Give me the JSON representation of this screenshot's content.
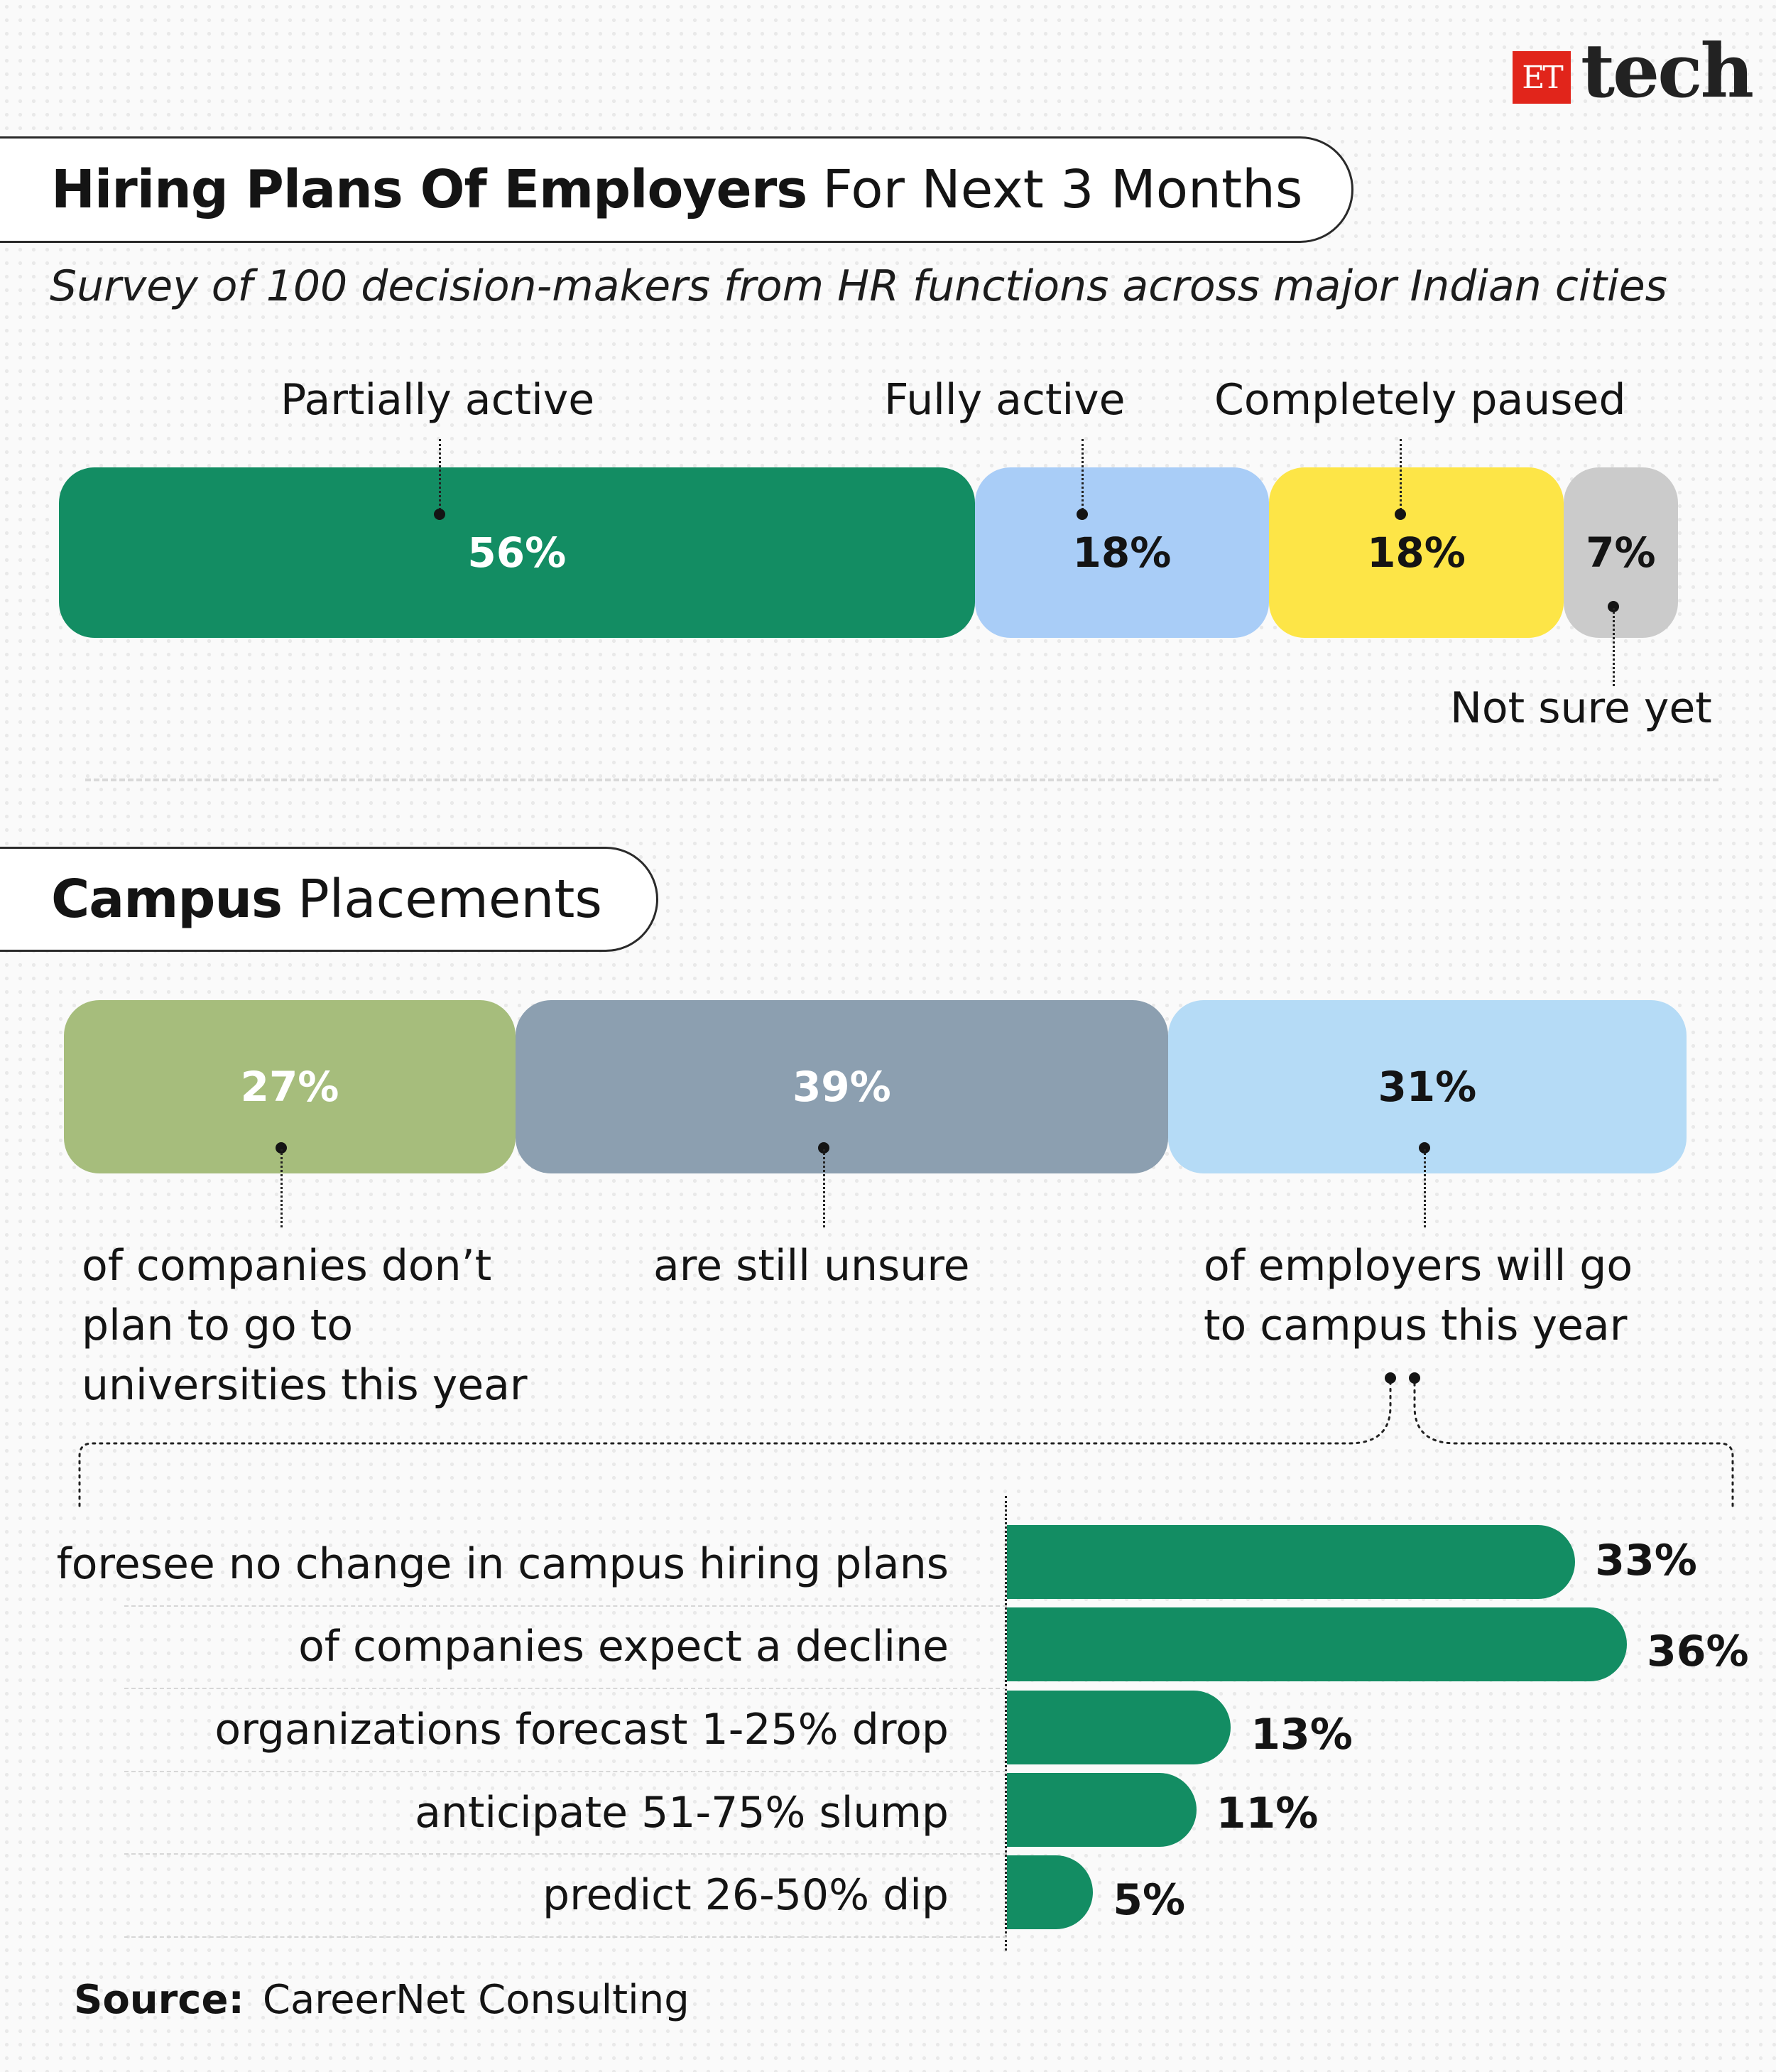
{
  "brand": {
    "logo_box": "ET",
    "logo_word": "tech"
  },
  "section1": {
    "title_bold": "Hiring Plans Of Employers",
    "title_light": "For Next 3 Months",
    "subtitle": "Survey of 100 decision-makers from HR functions across major Indian cities"
  },
  "section2": {
    "title_bold": "Campus",
    "title_light": "Placements"
  },
  "source": {
    "label": "Source:",
    "text": "CareerNet Consulting"
  },
  "colors": {
    "green": "#138d63",
    "light_blue": "#a9cdf7",
    "yellow": "#fde547",
    "grey": "#cbcbcb",
    "olive": "#a6bd7c",
    "slate": "#8c9fb0",
    "pale_blue": "#b5dbf6"
  },
  "chart_data": [
    {
      "type": "bar",
      "orientation": "horizontal-stacked",
      "categories": [
        "Partially active",
        "Fully active",
        "Completely paused",
        "Not sure yet"
      ],
      "values": [
        56,
        18,
        18,
        7
      ],
      "value_labels": [
        "56%",
        "18%",
        "18%",
        "7%"
      ],
      "colors": [
        "#138d63",
        "#a9cdf7",
        "#fde547",
        "#cbcbcb"
      ]
    },
    {
      "type": "bar",
      "orientation": "horizontal-stacked",
      "values": [
        27,
        39,
        31
      ],
      "value_labels": [
        "27%",
        "39%",
        "31%"
      ],
      "descriptions": [
        [
          "of companies don’t",
          "plan to go to",
          "universities this year"
        ],
        [
          "are still unsure"
        ],
        [
          "of employers will go",
          "to campus this year"
        ]
      ],
      "colors": [
        "#a6bd7c",
        "#8c9fb0",
        "#b5dbf6"
      ]
    },
    {
      "type": "bar",
      "orientation": "horizontal",
      "categories": [
        "foresee no change in campus hiring plans",
        "of companies expect a decline",
        "organizations forecast 1-25% drop",
        "anticipate 51-75% slump",
        "predict 26-50% dip"
      ],
      "values": [
        33,
        36,
        13,
        11,
        5
      ],
      "value_labels": [
        "33%",
        "36%",
        "13%",
        "11%",
        "5%"
      ],
      "color": "#138d63"
    }
  ]
}
